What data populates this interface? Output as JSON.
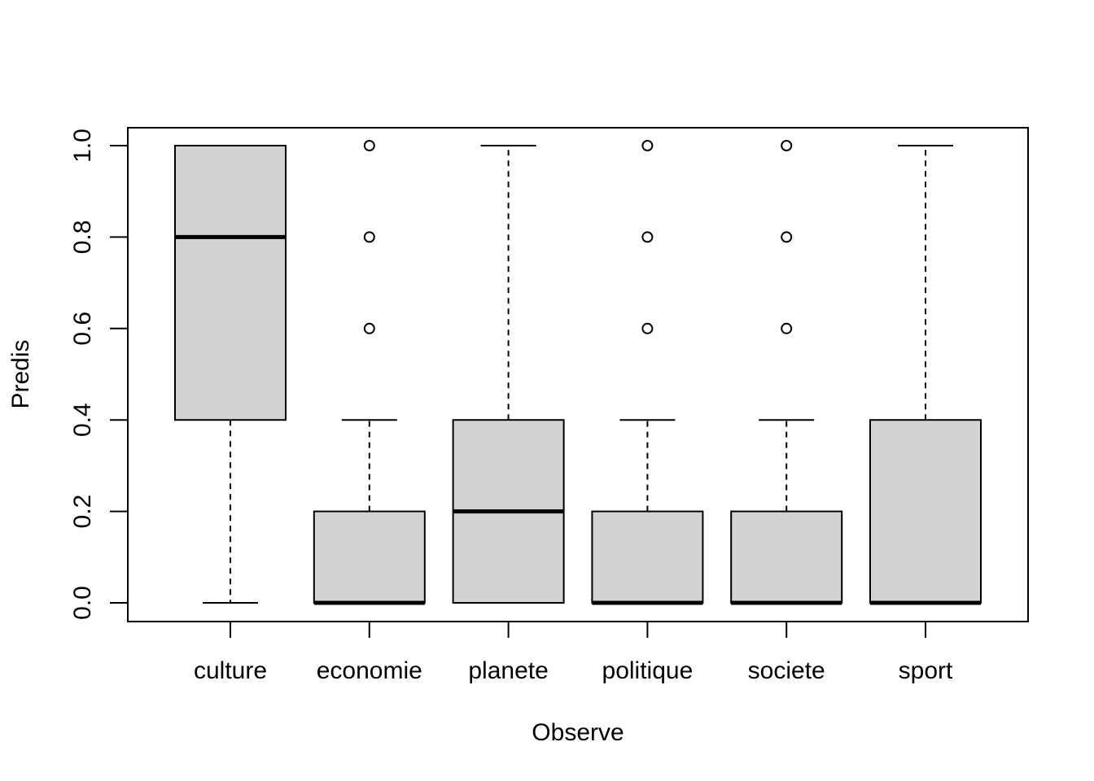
{
  "chart_data": {
    "type": "boxplot",
    "xlabel": "Observe",
    "ylabel": "Predis",
    "ylim": [
      -0.04,
      1.04
    ],
    "yticks": [
      0.0,
      0.2,
      0.4,
      0.6,
      0.8,
      1.0
    ],
    "ytick_labels": [
      "0.0",
      "0.2",
      "0.4",
      "0.6",
      "0.8",
      "1.0"
    ],
    "categories": [
      "culture",
      "economie",
      "planete",
      "politique",
      "societe",
      "sport"
    ],
    "boxes": [
      {
        "category": "culture",
        "whisker_low": 0.0,
        "q1": 0.4,
        "median": 0.8,
        "q3": 1.0,
        "whisker_high": 1.0,
        "outliers": []
      },
      {
        "category": "economie",
        "whisker_low": 0.0,
        "q1": 0.0,
        "median": 0.0,
        "q3": 0.2,
        "whisker_high": 0.4,
        "outliers": [
          0.6,
          0.8,
          1.0
        ]
      },
      {
        "category": "planete",
        "whisker_low": 0.0,
        "q1": 0.0,
        "median": 0.2,
        "q3": 0.4,
        "whisker_high": 1.0,
        "outliers": []
      },
      {
        "category": "politique",
        "whisker_low": 0.0,
        "q1": 0.0,
        "median": 0.0,
        "q3": 0.2,
        "whisker_high": 0.4,
        "outliers": [
          0.6,
          0.8,
          1.0
        ]
      },
      {
        "category": "societe",
        "whisker_low": 0.0,
        "q1": 0.0,
        "median": 0.0,
        "q3": 0.2,
        "whisker_high": 0.4,
        "outliers": [
          0.6,
          0.8,
          1.0
        ]
      },
      {
        "category": "sport",
        "whisker_low": 0.0,
        "q1": 0.0,
        "median": 0.0,
        "q3": 0.4,
        "whisker_high": 1.0,
        "outliers": []
      }
    ],
    "box_fill": "#d3d3d3",
    "grid": false,
    "legend": "none"
  }
}
